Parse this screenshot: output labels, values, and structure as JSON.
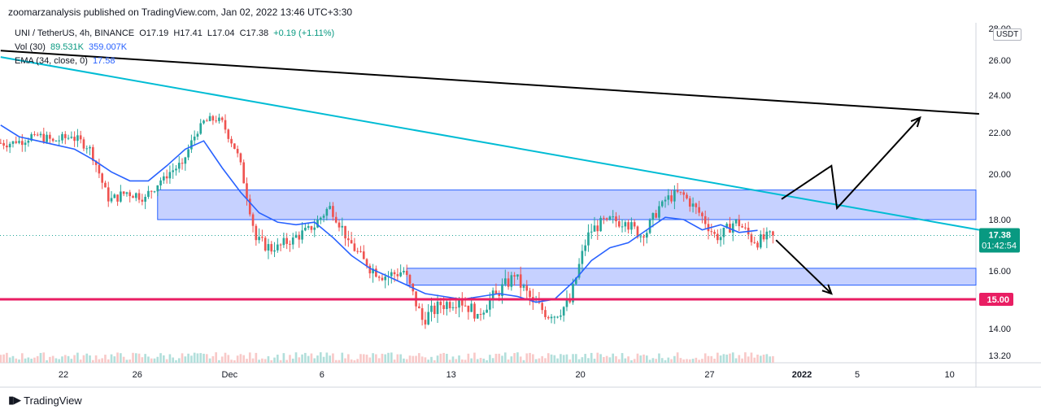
{
  "header": {
    "publisher_line": "zoomarzanalysis published on TradingView.com, Jan 02, 2022 13:46 UTC+3:30"
  },
  "legend": {
    "symbol": "UNI / TetherUS, 4h, BINANCE",
    "open": "O17.19",
    "high": "H17.41",
    "low": "L17.04",
    "close": "C17.38",
    "change": "+0.19 (+1.11%)",
    "volume_label": "Vol (30)",
    "volume_value1": "89.531K",
    "volume_value2": "359.007K",
    "ema_label": "EMA (34, close, 0)",
    "ema_value": "17.58"
  },
  "footer": {
    "brand": "TradingView"
  },
  "colors": {
    "up": "#089981",
    "down": "#f23645",
    "candle_up": "#26a69a",
    "candle_down": "#ef5350",
    "ema": "#2962ff",
    "zone_fill": "#b3c1ff",
    "zone_stroke": "#2962ff",
    "support": "#e91e63",
    "trend_cyan": "#00bcd4",
    "trend_black": "#000000",
    "volume": "#c8cbd4",
    "price_label": "#089981"
  },
  "chart_data": {
    "type": "candlestick",
    "title": "UNI / TetherUS, 4h, BINANCE",
    "currency": "USDT",
    "y_ticks": [
      28.0,
      26.0,
      24.0,
      22.0,
      20.0,
      18.0,
      16.0,
      14.0,
      13.2
    ],
    "y_tick_labels": [
      "28.00",
      "26.00",
      "24.00",
      "22.00",
      "20.00",
      "18.00",
      "16.00",
      "14.00",
      "13.20"
    ],
    "x_tick_labels": [
      "22",
      "26",
      "Dec",
      "6",
      "13",
      "20",
      "27",
      "2022",
      "5",
      "10"
    ],
    "x_tick_days": [
      0,
      4,
      9,
      14,
      21,
      28,
      35,
      40,
      43,
      48
    ],
    "last_price": "17.38",
    "countdown": "01:42:54",
    "support_label": "15.00",
    "support_level": 15.0,
    "series_closes_daily": [
      21.5,
      21.9,
      21.6,
      21.8,
      21.3,
      18.8,
      19.2,
      19.0,
      19.9,
      20.5,
      22.5,
      22.8,
      21.0,
      17.2,
      16.8,
      17.3,
      17.6,
      18.6,
      17.2,
      16.2,
      15.8,
      16.0,
      14.3,
      14.8,
      15.0,
      14.5,
      15.2,
      15.8,
      14.9,
      14.4,
      14.9,
      17.5,
      18.0,
      17.9,
      17.3,
      18.8,
      19.2,
      18.3,
      17.2,
      18.0,
      17.1,
      17.38
    ],
    "ema_values_daily": [
      22.4,
      21.8,
      21.6,
      21.4,
      21.2,
      20.7,
      20.1,
      19.7,
      19.7,
      20.4,
      21.2,
      21.6,
      20.3,
      19.2,
      18.3,
      17.9,
      17.8,
      17.9,
      17.3,
      16.6,
      16.1,
      15.8,
      15.5,
      15.2,
      15.1,
      15.0,
      15.1,
      15.2,
      15.1,
      14.9,
      15.0,
      15.6,
      16.4,
      16.9,
      17.1,
      17.6,
      18.1,
      18.0,
      17.6,
      17.8,
      17.5,
      17.58
    ],
    "zones": [
      {
        "from_day": 8.5,
        "to_day": 53,
        "low": 18.0,
        "high": 19.3
      },
      {
        "from_day": 22,
        "to_day": 53,
        "low": 15.5,
        "high": 16.1
      }
    ],
    "trendlines": [
      {
        "color": "cyan",
        "from": [
          0,
          26.2
        ],
        "to": [
          53,
          17.6
        ]
      },
      {
        "color": "black",
        "from": [
          0,
          26.6
        ],
        "to": [
          53,
          23.0
        ]
      }
    ],
    "projection_up": [
      [
        42.3,
        18.9
      ],
      [
        45.0,
        20.4
      ],
      [
        45.3,
        18.5
      ],
      [
        49.8,
        22.8
      ]
    ],
    "projection_down": [
      [
        42.0,
        17.2
      ],
      [
        45.0,
        15.2
      ]
    ]
  }
}
